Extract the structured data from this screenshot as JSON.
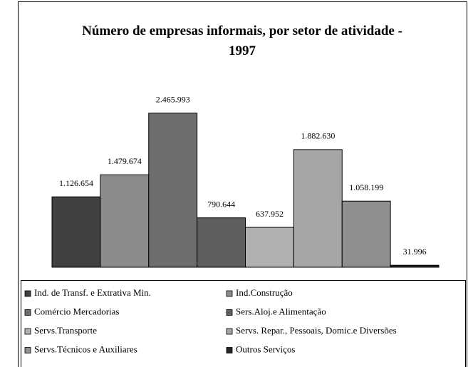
{
  "chart_data": {
    "type": "bar",
    "title": "Número de empresas informais, por setor de atividade - 1997",
    "ylim": [
      0,
      2600000
    ],
    "series": [
      {
        "name": "Ind. de Transf. e Extrativa Min.",
        "color": "#404040",
        "values": [
          1126654
        ],
        "value_labels": [
          "1.126.654"
        ]
      },
      {
        "name": "Ind.Construção",
        "color": "#8c8c8c",
        "values": [
          1479674
        ],
        "value_labels": [
          "1.479.674"
        ]
      },
      {
        "name": "Comércio Mercadorias",
        "color": "#6e6e6e",
        "values": [
          2465993
        ],
        "value_labels": [
          "2.465.993"
        ]
      },
      {
        "name": "Sers.Aloj.e Alimentação",
        "color": "#5f5f5f",
        "values": [
          790644
        ],
        "value_labels": [
          "790.644"
        ]
      },
      {
        "name": "Servs.Transporte",
        "color": "#b0b0b0",
        "values": [
          637952
        ],
        "value_labels": [
          "637.952"
        ]
      },
      {
        "name": "Servs. Repar., Pessoais, Domic.e Diversões",
        "color": "#a6a6a6",
        "values": [
          1882630
        ],
        "value_labels": [
          "1.882.630"
        ]
      },
      {
        "name": "Servs.Técnicos e Auxiliares",
        "color": "#8f8f8f",
        "values": [
          1058199
        ],
        "value_labels": [
          "1.058.199"
        ]
      },
      {
        "name": "Outros Serviços",
        "color": "#262626",
        "values": [
          31996
        ],
        "value_labels": [
          "31.996"
        ]
      }
    ]
  }
}
